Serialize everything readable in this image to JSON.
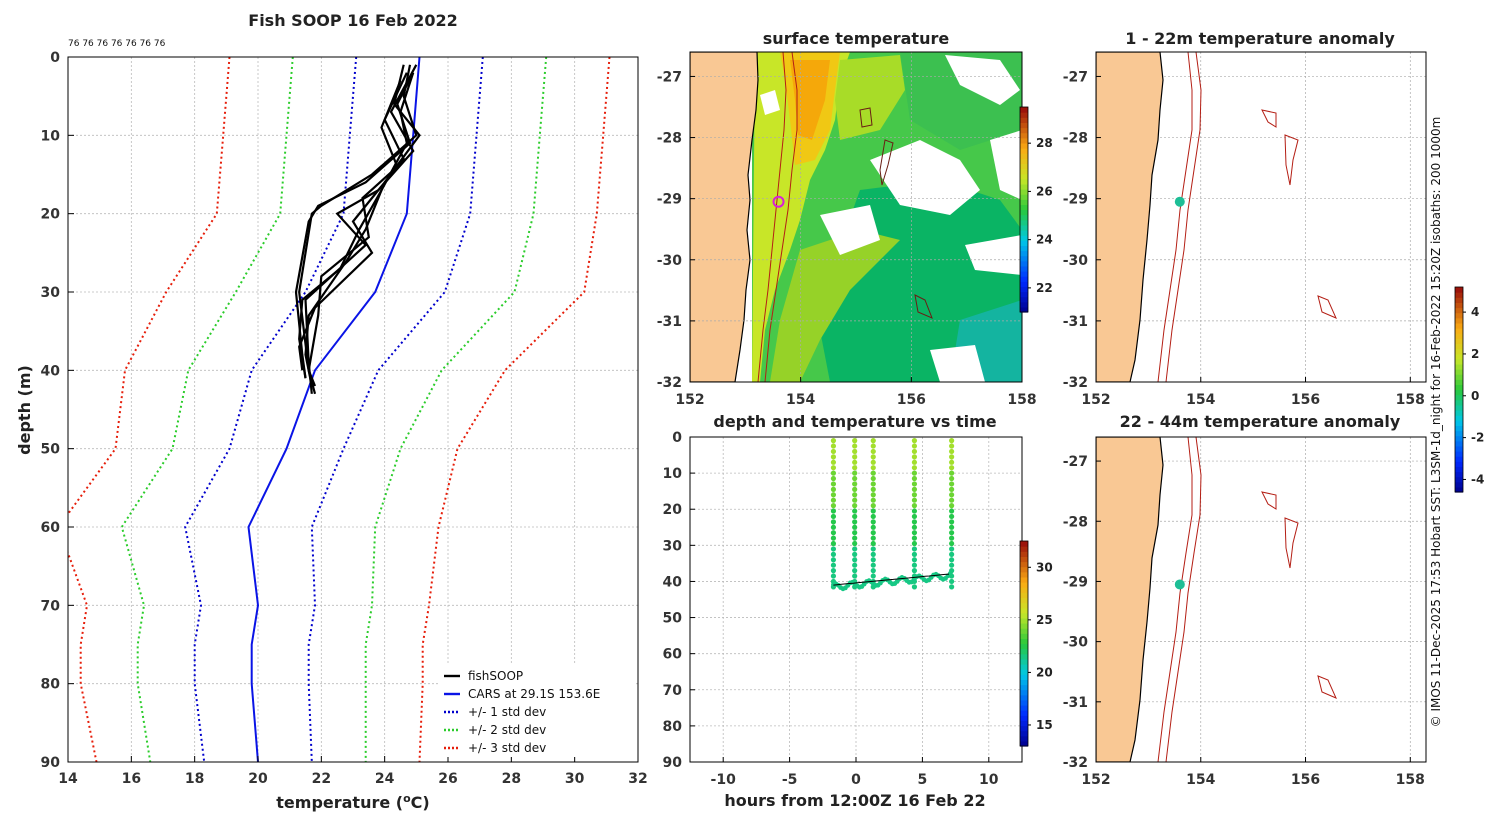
{
  "chart_data": [
    {
      "type": "line",
      "id": "profile",
      "title": "Fish SOOP 16 Feb 2022",
      "xlabel_main": "temperature (",
      "xlabel_sup": "o",
      "xlabel_end": "C)",
      "ylabel": "depth (m)",
      "xlim": [
        14,
        32
      ],
      "ylim": [
        0,
        90
      ],
      "xticks": [
        "14",
        "16",
        "18",
        "20",
        "22",
        "24",
        "26",
        "28",
        "30",
        "32"
      ],
      "yticks": [
        "0",
        "10",
        "20",
        "30",
        "40",
        "50",
        "60",
        "70",
        "80",
        "90"
      ],
      "top_label": "76 76 76 76 76 76 76",
      "cars_depth": [
        0,
        10,
        20,
        30,
        40,
        50,
        60,
        70,
        75,
        80,
        90
      ],
      "cars": [
        25.1,
        24.9,
        24.7,
        23.7,
        21.8,
        20.9,
        19.7,
        20.0,
        19.8,
        19.8,
        20.0
      ],
      "std1": [
        2.0,
        2.0,
        2.0,
        2.2,
        2.0,
        1.8,
        2.0,
        1.8,
        1.8,
        1.8,
        1.7
      ],
      "series": [
        {
          "name": "fishSOOP",
          "color": "#000000",
          "style": "solid"
        },
        {
          "name": "CARS at 29.1S 153.6E",
          "color": "#0a14e6",
          "style": "solid"
        },
        {
          "name": "+/- 1 std dev",
          "color": "#0000cc",
          "style": "dot"
        },
        {
          "name": "+/- 2 std dev",
          "color": "#2bcc2b",
          "style": "dot"
        },
        {
          "name": "+/- 3 std dev",
          "color": "#e61e0a",
          "style": "dot"
        }
      ],
      "fish_profiles": [
        {
          "depth": [
            1,
            5,
            10,
            15,
            19,
            20,
            30,
            40,
            42
          ],
          "temp": [
            24.8,
            24.6,
            25.0,
            23.6,
            22.0,
            21.7,
            21.3,
            21.6,
            21.8
          ]
        },
        {
          "depth": [
            2,
            6,
            11,
            16,
            19,
            21,
            30,
            38,
            41
          ],
          "temp": [
            24.9,
            24.4,
            24.8,
            23.4,
            21.9,
            21.6,
            21.2,
            21.4,
            21.5
          ]
        },
        {
          "depth": [
            1,
            7,
            12,
            17,
            20,
            24,
            31,
            39,
            43
          ],
          "temp": [
            25.0,
            24.2,
            24.9,
            23.8,
            22.5,
            23.4,
            21.5,
            21.6,
            21.7
          ]
        },
        {
          "depth": [
            2,
            8,
            13,
            18,
            21,
            25,
            32,
            37,
            40
          ],
          "temp": [
            24.7,
            24.0,
            24.6,
            23.6,
            23.0,
            23.6,
            21.8,
            21.3,
            21.4
          ]
        },
        {
          "depth": [
            1,
            6,
            10,
            16,
            22,
            26,
            33,
            38,
            42
          ],
          "temp": [
            24.6,
            24.3,
            25.1,
            24.0,
            23.4,
            22.8,
            21.6,
            21.5,
            21.7
          ]
        },
        {
          "depth": [
            3,
            9,
            14,
            18,
            23,
            28,
            33,
            40,
            43
          ],
          "temp": [
            24.5,
            23.9,
            24.4,
            23.3,
            23.5,
            22.0,
            21.9,
            21.6,
            21.8
          ]
        },
        {
          "depth": [
            2,
            7,
            11,
            17,
            22,
            27,
            31,
            36,
            41
          ],
          "temp": [
            24.9,
            24.5,
            24.7,
            23.9,
            23.2,
            22.6,
            21.4,
            21.3,
            21.5
          ]
        }
      ]
    },
    {
      "type": "heatmap",
      "id": "sst",
      "title": "surface temperature",
      "xlim": [
        152,
        158
      ],
      "ylim": [
        -32,
        -26.6
      ],
      "xticks": [
        "152",
        "154",
        "156",
        "158"
      ],
      "yticks": [
        "-27",
        "-28",
        "-29",
        "-30",
        "-31",
        "-32"
      ],
      "colorbar": {
        "ticks": [
          "22",
          "24",
          "26",
          "28"
        ],
        "range": [
          21,
          29.5
        ]
      },
      "marker": {
        "lon": 153.6,
        "lat": -29.05
      }
    },
    {
      "type": "scatter",
      "id": "timeseries",
      "title": "depth and temperature vs time",
      "xlabel": "hours from 12:00Z 16 Feb 22",
      "xlim": [
        -12.5,
        12.5
      ],
      "ylim": [
        0,
        90
      ],
      "xticks": [
        "-10",
        "-5",
        "0",
        "5",
        "10"
      ],
      "yticks": [
        "0",
        "10",
        "20",
        "30",
        "40",
        "50",
        "60",
        "70",
        "80",
        "90"
      ],
      "cast_times": [
        -1.7,
        -0.1,
        1.3,
        4.4,
        7.2
      ],
      "colorbar": {
        "ticks": [
          "15",
          "20",
          "25",
          "30"
        ],
        "range": [
          13,
          32.5
        ]
      }
    },
    {
      "type": "heatmap",
      "id": "anom1",
      "title": "1 - 22m temperature anomaly",
      "xlim": [
        152,
        158.3
      ],
      "ylim": [
        -32,
        -26.6
      ],
      "xticks": [
        "152",
        "154",
        "156",
        "158"
      ],
      "yticks": [
        "-27",
        "-28",
        "-29",
        "-30",
        "-31",
        "-32"
      ],
      "marker": {
        "lon": 153.6,
        "lat": -29.05,
        "value": -1.2
      }
    },
    {
      "type": "heatmap",
      "id": "anom2",
      "title": "22 - 44m temperature anomaly",
      "xlim": [
        152,
        158.3
      ],
      "ylim": [
        -32,
        -26.6
      ],
      "xticks": [
        "152",
        "154",
        "156",
        "158"
      ],
      "yticks": [
        "-27",
        "-28",
        "-29",
        "-30",
        "-31",
        "-32"
      ],
      "marker": {
        "lon": 153.6,
        "lat": -29.05,
        "value": -1.0
      }
    },
    {
      "type": "colorbar",
      "id": "anomaly_colorbar",
      "ticks": [
        "-4",
        "-2",
        "0",
        "2",
        "4"
      ],
      "range": [
        -4.6,
        5.2
      ]
    }
  ],
  "credit": "© IMOS 11-Dec-2025 17:53 Hobart SST: L3SM-1d_night for 16-Feb-2022 15:20Z isobaths: 200  1000m",
  "colors": {
    "land": "#f9c894",
    "isobath": "#b41e14",
    "grid": "#bbbbbb"
  }
}
